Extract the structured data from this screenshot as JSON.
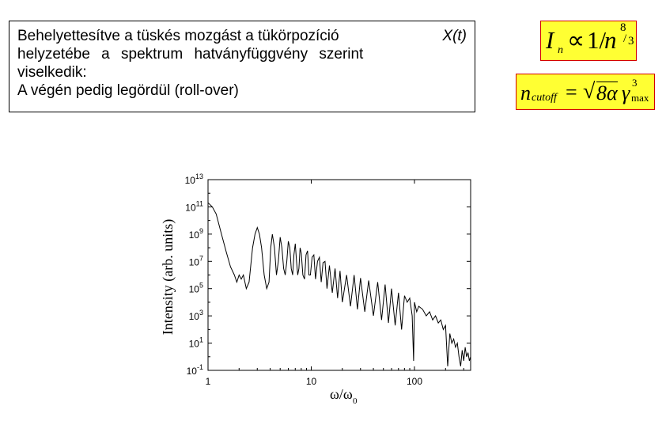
{
  "slide": {
    "text_lines": [
      "Behelyettesítve a tüskés mozgást a tükörpozíció",
      "X(t)",
      "helyzetébe a spektrum hatványfüggvény szerint",
      "viselkedik:",
      "A végén pedig legördül (roll-over)"
    ],
    "formula1": {
      "lhs": "I",
      "lhs_sub": "n",
      "prop": "∝",
      "one_over": "1/",
      "var": "n",
      "exp_num": "8",
      "exp_den": "3"
    },
    "formula2": {
      "lhs": "n",
      "lhs_sub": "cutoff",
      "eq": "=",
      "sqrt": "√",
      "radicand": "8α",
      "gamma": "γ",
      "gamma_sup": "3",
      "gamma_sub": "max"
    }
  },
  "colors": {
    "formula_fill": "#ffff33",
    "formula_border": "#d40000",
    "line": "#000000"
  },
  "chart_data": {
    "type": "line",
    "xlabel": "ω/ω",
    "xlabel_sub": "0",
    "ylabel": "Intensity (arb. units)",
    "x_scale": "log",
    "y_scale": "log",
    "xlim": [
      1,
      350
    ],
    "ylim": [
      0.1,
      10000000000000.0
    ],
    "x_ticks": [
      "1",
      "10",
      "100"
    ],
    "y_ticks": [
      {
        "base": "10",
        "exp": "13"
      },
      {
        "base": "10",
        "exp": "11"
      },
      {
        "base": "10",
        "exp": "9"
      },
      {
        "base": "10",
        "exp": "7"
      },
      {
        "base": "10",
        "exp": "5"
      },
      {
        "base": "10",
        "exp": "3"
      },
      {
        "base": "10",
        "exp": "1"
      },
      {
        "base": "10",
        "exp": "-1"
      }
    ],
    "grid": false,
    "series": [
      {
        "x": [
          1,
          1.1,
          1.2,
          1.35,
          1.5,
          1.65,
          1.8,
          1.9,
          2.0,
          2.1,
          2.2,
          2.35,
          2.5,
          2.7,
          2.85,
          3.0,
          3.15,
          3.3,
          3.5,
          3.7,
          3.9,
          4.05,
          4.2,
          4.4,
          4.6,
          4.8,
          5.0,
          5.2,
          5.4,
          5.6,
          5.8,
          6.0,
          6.2,
          6.4,
          6.6,
          6.8,
          7.0,
          7.2,
          7.4,
          7.6,
          7.8,
          8.0,
          8.3,
          8.6,
          8.9,
          9.2,
          9.5,
          9.8,
          10.2,
          10.6,
          11,
          11.5,
          12,
          12.5,
          13,
          13.6,
          14.2,
          15,
          16,
          17,
          18,
          19,
          20,
          22,
          24,
          26,
          28,
          30,
          33,
          36,
          40,
          44,
          48,
          52,
          56,
          60,
          65,
          70,
          75,
          80,
          85,
          90,
          95,
          98,
          100,
          105,
          110,
          120,
          130,
          140,
          150,
          160,
          170,
          180,
          190,
          200,
          210,
          220,
          230,
          240,
          250,
          260,
          270,
          280,
          290,
          300,
          310,
          320,
          330,
          340,
          350
        ],
        "y": [
          200000000000.0,
          100000000000.0,
          30000000000.0,
          1000000000.0,
          50000000.0,
          4000000.0,
          1000000.0,
          300000.0,
          1000000.0,
          500000.0,
          1000000.0,
          100000.0,
          300000.0,
          100000000.0,
          1000000000.0,
          3000000000.0,
          1000000000.0,
          100000000.0,
          1000000.0,
          100000.0,
          300000.0,
          100000000.0,
          1000000000.0,
          100000000.0,
          1000000.0,
          10000000.0,
          600000000.0,
          100000000.0,
          3000000.0,
          1000000.0,
          10000000.0,
          300000000.0,
          100000000.0,
          3000000.0,
          1000000.0,
          30000000.0,
          200000000.0,
          10000000.0,
          1000000.0,
          3000000.0,
          100000000.0,
          40000000.0,
          1000000.0,
          500000.0,
          30000000.0,
          60000000.0,
          1000000.0,
          1000000.0,
          20000000.0,
          30000000.0,
          500000.0,
          10000000.0,
          20000000.0,
          300000.0,
          8000000.0,
          10000000.0,
          100000.0,
          5000000.0,
          50000.0,
          3000000.0,
          20000.0,
          2000000.0,
          10000.0,
          1000000.0,
          5000.0,
          1000000.0,
          3000.0,
          600000.0,
          2000.0,
          400000.0,
          1000.0,
          300000.0,
          500,
          200000.0,
          300,
          100000.0,
          200,
          50000.0,
          100,
          30000.0,
          10000.0,
          20000.0,
          1000.0,
          0.5,
          10000.0,
          2000.0,
          5000.0,
          3000.0,
          1000.0,
          2000.0,
          500,
          1000.0,
          300,
          500,
          100,
          200,
          0.2,
          50,
          10,
          20,
          5,
          10,
          1,
          0.2,
          3,
          0.5,
          5,
          1,
          2,
          0.5,
          1
        ]
      }
    ]
  }
}
